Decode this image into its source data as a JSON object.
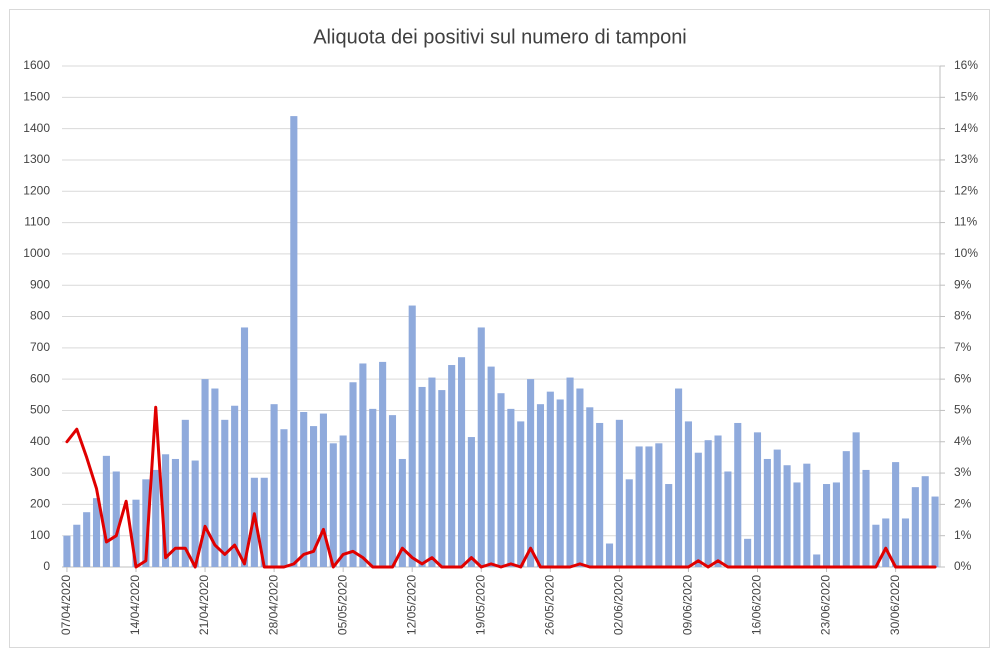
{
  "chart_data": {
    "type": "bar",
    "title": "Aliquota dei positivi sul numero di tamponi",
    "categories": [
      "07/04/2020",
      null,
      null,
      null,
      null,
      null,
      null,
      "14/04/2020",
      null,
      null,
      null,
      null,
      null,
      null,
      "21/04/2020",
      null,
      null,
      null,
      null,
      null,
      null,
      "28/04/2020",
      null,
      null,
      null,
      null,
      null,
      null,
      "05/05/2020",
      null,
      null,
      null,
      null,
      null,
      null,
      "12/05/2020",
      null,
      null,
      null,
      null,
      null,
      null,
      "19/05/2020",
      null,
      null,
      null,
      null,
      null,
      null,
      "26/05/2020",
      null,
      null,
      null,
      null,
      null,
      null,
      "02/06/2020",
      null,
      null,
      null,
      null,
      null,
      null,
      "09/06/2020",
      null,
      null,
      null,
      null,
      null,
      null,
      "16/06/2020",
      null,
      null,
      null,
      null,
      null,
      null,
      "23/06/2020",
      null,
      null,
      null,
      null,
      null,
      null,
      "30/06/2020",
      null,
      null,
      null,
      null
    ],
    "series": [
      {
        "color": "#8faadc",
        "values": [
          100,
          135,
          175,
          220,
          355,
          305,
          0,
          215,
          280,
          310,
          360,
          345,
          470,
          340,
          600,
          570,
          470,
          515,
          765,
          285,
          285,
          520,
          440,
          1440,
          495,
          450,
          490,
          395,
          420,
          590,
          650,
          505,
          655,
          485,
          345,
          835,
          575,
          605,
          565,
          645,
          670,
          415,
          765,
          640,
          555,
          505,
          465,
          600,
          520,
          560,
          535,
          605,
          570,
          510,
          460,
          75,
          470,
          280,
          385,
          385,
          395,
          265,
          570,
          465,
          365,
          405,
          420,
          305,
          460,
          90,
          430,
          345,
          375,
          325,
          270,
          330,
          40,
          265,
          270,
          370,
          430,
          310,
          135,
          155,
          335,
          155,
          255,
          290,
          225
        ]
      },
      {
        "type": "line",
        "axis": "y2",
        "color": "#e00000",
        "values": [
          4.0,
          4.4,
          3.5,
          2.5,
          0.8,
          1.0,
          2.1,
          0,
          0.2,
          5.1,
          0.3,
          0.6,
          0.6,
          0,
          1.3,
          0.7,
          0.4,
          0.7,
          0.1,
          1.7,
          0,
          0,
          0,
          0.1,
          0.4,
          0.5,
          1.2,
          0,
          0.4,
          0.5,
          0.3,
          0,
          0,
          0,
          0.6,
          0.3,
          0.1,
          0.3,
          0,
          0,
          0,
          0.3,
          0,
          0.1,
          0,
          0.1,
          0,
          0.6,
          0,
          0,
          0,
          0,
          0.1,
          0,
          0,
          0,
          0,
          0,
          0,
          0,
          0,
          0,
          0,
          0,
          0.2,
          0,
          0.2,
          0,
          0,
          0,
          0,
          0,
          0,
          0,
          0,
          0,
          0,
          0,
          0,
          0,
          0,
          0,
          0,
          0.6,
          0,
          0,
          0,
          0,
          0
        ]
      }
    ],
    "ylim": [
      0,
      1600
    ],
    "yticks": [
      0,
      100,
      200,
      300,
      400,
      500,
      600,
      700,
      800,
      900,
      1000,
      1100,
      1200,
      1300,
      1400,
      1500,
      1600
    ],
    "y2lim": [
      0,
      16
    ],
    "y2ticks": [
      {
        "value": 0,
        "label": "0%"
      },
      {
        "value": 1,
        "label": "1%"
      },
      {
        "value": 2,
        "label": "2%"
      },
      {
        "value": 3,
        "label": "3%"
      },
      {
        "value": 4,
        "label": "4%"
      },
      {
        "value": 5,
        "label": "5%"
      },
      {
        "value": 6,
        "label": "6%"
      },
      {
        "value": 7,
        "label": "7%"
      },
      {
        "value": 8,
        "label": "8%"
      },
      {
        "value": 9,
        "label": "9%"
      },
      {
        "value": 10,
        "label": "10%"
      },
      {
        "value": 11,
        "label": "11%"
      },
      {
        "value": 12,
        "label": "12%"
      },
      {
        "value": 13,
        "label": "13%"
      },
      {
        "value": 14,
        "label": "14%"
      },
      {
        "value": 15,
        "label": "15%"
      },
      {
        "value": 16,
        "label": "16%"
      }
    ],
    "grid": true
  }
}
